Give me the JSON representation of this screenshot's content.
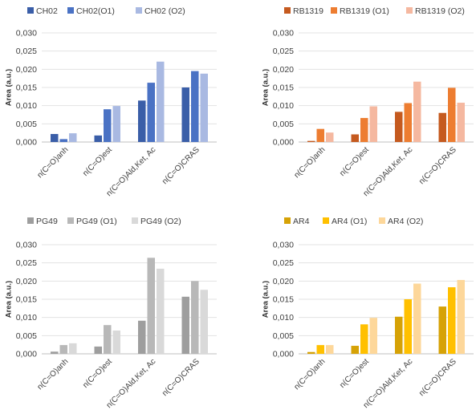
{
  "chart_data": [
    {
      "type": "bar",
      "categories": [
        "n(C=O)anh",
        "n(C=O)est",
        "n(C=O)Ald,Ket, Ac",
        "n(C=O)CRAS"
      ],
      "series": [
        {
          "name": "CH02",
          "color": "#3a5ea8",
          "values": [
            0.0022,
            0.0018,
            0.0114,
            0.015
          ]
        },
        {
          "name": "CH02(O1)",
          "color": "#4a72c4",
          "values": [
            0.0008,
            0.009,
            0.0163,
            0.0195
          ]
        },
        {
          "name": "CH02 (O2)",
          "color": "#a9b9e2",
          "values": [
            0.0024,
            0.0099,
            0.0221,
            0.0188
          ]
        }
      ],
      "ylabel": "Area (a.u.)",
      "yticks": [
        "0,000",
        "0,005",
        "0,010",
        "0,015",
        "0,020",
        "0,025",
        "0,030"
      ],
      "ylim": [
        0,
        0.03
      ],
      "grid": true,
      "legend": "top-left"
    },
    {
      "type": "bar",
      "categories": [
        "n(C=O)anh",
        "n(C=O)est",
        "n(C=O)Ald,Ket, Ac",
        "n(C=O)CRAS"
      ],
      "series": [
        {
          "name": "RB1319",
          "color": "#c55a1f",
          "values": [
            0.0003,
            0.0021,
            0.0083,
            0.008
          ]
        },
        {
          "name": "RB1319 (O1)",
          "color": "#ed7d31",
          "values": [
            0.0036,
            0.0066,
            0.0107,
            0.0149
          ]
        },
        {
          "name": "RB1319 (O2)",
          "color": "#f5b8a0",
          "values": [
            0.0026,
            0.0098,
            0.0166,
            0.0108
          ]
        }
      ],
      "ylabel": "Area (a.u.)",
      "yticks": [
        "0,000",
        "0,005",
        "0,010",
        "0,015",
        "0,020",
        "0,025",
        "0,030"
      ],
      "ylim": [
        0,
        0.03
      ],
      "grid": true,
      "legend": "top-left"
    },
    {
      "type": "bar",
      "categories": [
        "n(C=O)anh",
        "n(C=O)est",
        "n(C=O)Ald,Ket, Ac",
        "n(C=O)CRAS"
      ],
      "series": [
        {
          "name": "PG49",
          "color": "#9e9e9e",
          "values": [
            0.0006,
            0.002,
            0.0091,
            0.0157
          ]
        },
        {
          "name": "PG49 (O1)",
          "color": "#b8b8b8",
          "values": [
            0.0024,
            0.0079,
            0.0264,
            0.02
          ]
        },
        {
          "name": "PG49 (O2)",
          "color": "#d9d9d9",
          "values": [
            0.0029,
            0.0064,
            0.0234,
            0.0176
          ]
        }
      ],
      "ylabel": "Area (a.u.)",
      "yticks": [
        "0,000",
        "0,005",
        "0,010",
        "0,015",
        "0,020",
        "0,025",
        "0,030"
      ],
      "ylim": [
        0,
        0.03
      ],
      "grid": true,
      "legend": "top-left"
    },
    {
      "type": "bar",
      "categories": [
        "n(C=O)anh",
        "n(C=O)est",
        "n(C=O)Ald,Ket, Ac",
        "n(C=O)CRAS"
      ],
      "series": [
        {
          "name": "AR4",
          "color": "#d6a206",
          "values": [
            0.0005,
            0.0022,
            0.0102,
            0.013
          ]
        },
        {
          "name": "AR4 (O1)",
          "color": "#ffc000",
          "values": [
            0.0024,
            0.0081,
            0.015,
            0.0183
          ]
        },
        {
          "name": "AR4 (O2)",
          "color": "#fdd79a",
          "values": [
            0.0024,
            0.0099,
            0.0193,
            0.0203
          ]
        }
      ],
      "ylabel": "Area (a.u.)",
      "yticks": [
        "0,000",
        "0,005",
        "0,010",
        "0,015",
        "0,020",
        "0,025",
        "0,030"
      ],
      "ylim": [
        0,
        0.03
      ],
      "grid": true,
      "legend": "top-left"
    }
  ]
}
